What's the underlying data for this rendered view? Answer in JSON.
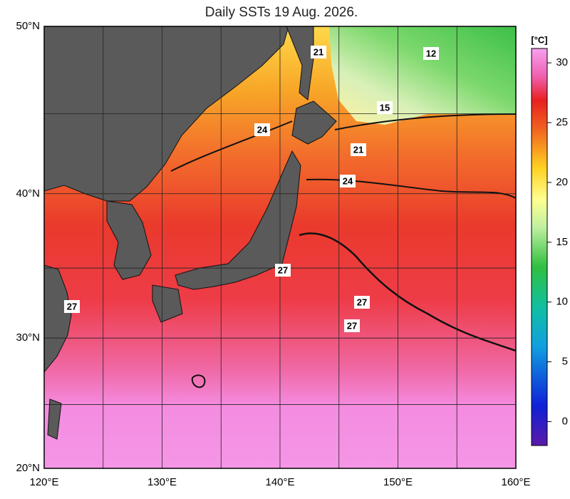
{
  "title": "Daily SSTs 19 Aug. 2026.",
  "map": {
    "lon_range": [
      120,
      160
    ],
    "lat_range": [
      20,
      50
    ],
    "lon_ticks": [
      {
        "value": 120,
        "label": "120°E"
      },
      {
        "value": 130,
        "label": "130°E"
      },
      {
        "value": 140,
        "label": "140°E"
      },
      {
        "value": 150,
        "label": "150°E"
      },
      {
        "value": 160,
        "label": "160°E"
      }
    ],
    "lat_ticks": [
      {
        "value": 20,
        "label": "20°N"
      },
      {
        "value": 30,
        "label": "30°N"
      },
      {
        "value": 40,
        "label": "40°N"
      },
      {
        "value": 50,
        "label": "50°N"
      }
    ],
    "contour_labels": [
      "21",
      "12",
      "15",
      "24",
      "21",
      "24",
      "27",
      "27",
      "27",
      "27"
    ]
  },
  "colorbar": {
    "unit": "[°C]",
    "range": [
      -2,
      31.2
    ],
    "ticks": [
      0,
      5,
      10,
      15,
      20,
      25,
      30
    ]
  }
}
